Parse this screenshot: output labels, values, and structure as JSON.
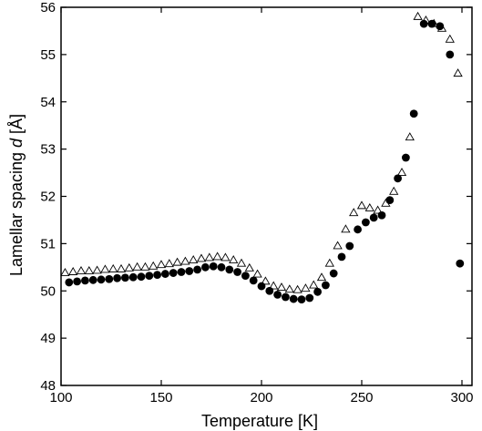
{
  "chart_data": {
    "type": "scatter",
    "title": "",
    "xlabel": "Temperature [K]",
    "ylabel_prefix": "Lamellar spacing ",
    "ylabel_symbol": "d",
    "ylabel_unit": " [Å]",
    "xlim": [
      100,
      305
    ],
    "ylim": [
      48,
      56
    ],
    "x_ticks": [
      100,
      150,
      200,
      250,
      300
    ],
    "y_ticks": [
      48,
      49,
      50,
      51,
      52,
      53,
      54,
      55,
      56
    ],
    "grid": false,
    "legend": false,
    "series": [
      {
        "marker": "open-triangle",
        "color": "#000000",
        "points": [
          [
            102,
            50.38
          ],
          [
            106,
            50.4
          ],
          [
            110,
            50.42
          ],
          [
            114,
            50.42
          ],
          [
            118,
            50.43
          ],
          [
            122,
            50.45
          ],
          [
            126,
            50.46
          ],
          [
            130,
            50.46
          ],
          [
            134,
            50.48
          ],
          [
            138,
            50.5
          ],
          [
            142,
            50.5
          ],
          [
            146,
            50.52
          ],
          [
            150,
            50.55
          ],
          [
            154,
            50.57
          ],
          [
            158,
            50.6
          ],
          [
            162,
            50.62
          ],
          [
            166,
            50.65
          ],
          [
            170,
            50.68
          ],
          [
            174,
            50.7
          ],
          [
            178,
            50.72
          ],
          [
            182,
            50.7
          ],
          [
            186,
            50.65
          ],
          [
            190,
            50.58
          ],
          [
            194,
            50.48
          ],
          [
            198,
            50.35
          ],
          [
            202,
            50.2
          ],
          [
            206,
            50.1
          ],
          [
            210,
            50.07
          ],
          [
            214,
            50.03
          ],
          [
            218,
            50.02
          ],
          [
            222,
            50.05
          ],
          [
            226,
            50.12
          ],
          [
            230,
            50.28
          ],
          [
            234,
            50.58
          ],
          [
            238,
            50.95
          ],
          [
            242,
            51.3
          ],
          [
            246,
            51.65
          ],
          [
            250,
            51.8
          ],
          [
            254,
            51.75
          ],
          [
            258,
            51.7
          ],
          [
            262,
            51.85
          ],
          [
            266,
            52.1
          ],
          [
            270,
            52.5
          ],
          [
            274,
            53.25
          ],
          [
            278,
            55.8
          ],
          [
            282,
            55.72
          ],
          [
            286,
            55.65
          ],
          [
            290,
            55.55
          ],
          [
            294,
            55.32
          ],
          [
            298,
            54.6
          ]
        ]
      },
      {
        "marker": "filled-circle",
        "color": "#000000",
        "points": [
          [
            104,
            50.18
          ],
          [
            108,
            50.2
          ],
          [
            112,
            50.22
          ],
          [
            116,
            50.23
          ],
          [
            120,
            50.24
          ],
          [
            124,
            50.25
          ],
          [
            128,
            50.27
          ],
          [
            132,
            50.28
          ],
          [
            136,
            50.29
          ],
          [
            140,
            50.3
          ],
          [
            144,
            50.32
          ],
          [
            148,
            50.34
          ],
          [
            152,
            50.36
          ],
          [
            156,
            50.38
          ],
          [
            160,
            50.4
          ],
          [
            164,
            50.42
          ],
          [
            168,
            50.45
          ],
          [
            172,
            50.5
          ],
          [
            176,
            50.52
          ],
          [
            180,
            50.5
          ],
          [
            184,
            50.45
          ],
          [
            188,
            50.4
          ],
          [
            192,
            50.32
          ],
          [
            196,
            50.22
          ],
          [
            200,
            50.1
          ],
          [
            204,
            50.0
          ],
          [
            208,
            49.92
          ],
          [
            212,
            49.87
          ],
          [
            216,
            49.83
          ],
          [
            220,
            49.82
          ],
          [
            224,
            49.85
          ],
          [
            228,
            49.98
          ],
          [
            232,
            50.12
          ],
          [
            236,
            50.37
          ],
          [
            240,
            50.72
          ],
          [
            244,
            50.95
          ],
          [
            248,
            51.3
          ],
          [
            252,
            51.45
          ],
          [
            256,
            51.55
          ],
          [
            260,
            51.6
          ],
          [
            264,
            51.92
          ],
          [
            268,
            52.38
          ],
          [
            272,
            52.82
          ],
          [
            276,
            53.75
          ],
          [
            281,
            55.65
          ],
          [
            285,
            55.65
          ],
          [
            289,
            55.6
          ],
          [
            294,
            55.0
          ],
          [
            299,
            50.58
          ]
        ]
      }
    ]
  }
}
